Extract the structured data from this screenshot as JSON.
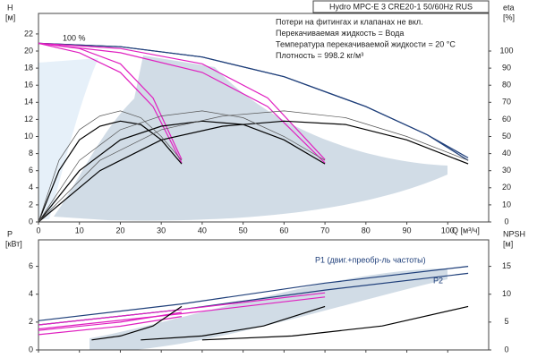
{
  "chart_data": [
    {
      "type": "line",
      "header": "Hydro MPC-E 3 CRE20-1 50/60Hz RUS",
      "notes": [
        "Потери на фитингах и клапанах не вкл.",
        "Перекачиваемая жидкость = Вода",
        "Температура перекачиваемой жидкости = 20 °C",
        "Плотность = 998.2 кг/м³"
      ],
      "annotation": "100 %",
      "ylabel": [
        "H",
        "[м]"
      ],
      "y2label": [
        "eta",
        "[%]"
      ],
      "xlabel": "Q [м³/ч]",
      "xlim": [
        0,
        110
      ],
      "xticks": [
        0,
        10,
        20,
        30,
        40,
        50,
        60,
        70,
        80,
        90,
        100
      ],
      "ylim": [
        0,
        24.4
      ],
      "yticks": [
        0,
        2,
        4,
        6,
        8,
        10,
        12,
        14,
        16,
        18,
        20,
        22
      ],
      "y2lim": [
        0,
        122
      ],
      "y2ticks": [
        0,
        10,
        20,
        30,
        40,
        50,
        60,
        70,
        80,
        90,
        100
      ],
      "series": [
        {
          "color": "#1f3f7a",
          "x": [
            0,
            20,
            40,
            60,
            80,
            95,
            105
          ],
          "values": [
            20.9,
            20.5,
            19.3,
            17,
            13.5,
            10.2,
            7.2
          ]
        },
        {
          "color": "#1f3f7a",
          "x": [
            0,
            20,
            40,
            60,
            80,
            95,
            105
          ],
          "values": [
            20.9,
            20.5,
            19.3,
            17,
            13.5,
            10.2,
            7.5
          ]
        },
        {
          "color": "#e020c0",
          "x": [
            0,
            10,
            20,
            28,
            35
          ],
          "values": [
            20.9,
            20.3,
            18.5,
            14.5,
            7.3
          ]
        },
        {
          "color": "#e020c0",
          "x": [
            0,
            10,
            20,
            28,
            35
          ],
          "values": [
            20.9,
            19.8,
            17.5,
            13.5,
            6.9
          ]
        },
        {
          "color": "#e020c0",
          "x": [
            0,
            20,
            40,
            56,
            70
          ],
          "values": [
            20.9,
            20.3,
            18.5,
            14.5,
            7.3
          ]
        },
        {
          "color": "#e020c0",
          "x": [
            0,
            20,
            40,
            56,
            70
          ],
          "values": [
            20.9,
            19.8,
            17.5,
            13.5,
            6.9
          ]
        },
        {
          "color": "#000000",
          "axis": "y2",
          "x": [
            0,
            5,
            10,
            15,
            20,
            25,
            30,
            35
          ],
          "values": [
            0,
            30,
            48,
            56,
            59,
            57,
            48,
            34
          ]
        },
        {
          "color": "#000000",
          "axis": "y2",
          "x": [
            0,
            10,
            20,
            30,
            40,
            50,
            60,
            70
          ],
          "values": [
            0,
            30,
            48,
            56,
            59,
            57,
            48,
            34
          ]
        },
        {
          "color": "#000000",
          "axis": "y2",
          "x": [
            0,
            15,
            30,
            45,
            60,
            75,
            90,
            105
          ],
          "values": [
            0,
            30,
            48,
            56,
            59,
            57,
            48,
            34
          ]
        },
        {
          "color": "#555555",
          "axis": "y2",
          "x": [
            0,
            5,
            10,
            15,
            20,
            25,
            30,
            35
          ],
          "values": [
            0,
            36,
            54,
            62,
            65,
            61,
            50,
            36
          ]
        },
        {
          "color": "#555555",
          "axis": "y2",
          "x": [
            0,
            10,
            20,
            30,
            40,
            50,
            60,
            70
          ],
          "values": [
            0,
            36,
            54,
            62,
            65,
            61,
            50,
            36
          ]
        },
        {
          "color": "#555555",
          "axis": "y2",
          "x": [
            0,
            15,
            30,
            45,
            60,
            75,
            90,
            105
          ],
          "values": [
            0,
            36,
            54,
            62,
            65,
            61,
            50,
            36
          ]
        }
      ]
    },
    {
      "type": "line",
      "ylabel": [
        "P",
        "[кВт]"
      ],
      "y2label": [
        "NPSH",
        "[м]"
      ],
      "labels": [
        "P1 (двиг.+преобр-ль частоты)",
        "P2"
      ],
      "xlim": [
        0,
        110
      ],
      "xticks": [
        0,
        10,
        20,
        30,
        40,
        50,
        60,
        70,
        80,
        90,
        100
      ],
      "ylim": [
        0,
        7.9
      ],
      "yticks": [
        0,
        2,
        4,
        6
      ],
      "y2lim": [
        0,
        19.75
      ],
      "y2ticks": [
        0,
        5,
        10,
        15
      ],
      "series": [
        {
          "color": "#1f3f7a",
          "x": [
            0,
            35,
            70,
            105
          ],
          "values": [
            2.1,
            3.3,
            4.8,
            6.0
          ]
        },
        {
          "color": "#1f3f7a",
          "x": [
            0,
            35,
            70,
            105
          ],
          "values": [
            1.8,
            2.9,
            4.3,
            5.5
          ]
        },
        {
          "color": "#e020c0",
          "x": [
            0,
            35,
            70
          ],
          "values": [
            1.8,
            2.9,
            4.1
          ]
        },
        {
          "color": "#e020c0",
          "x": [
            0,
            35,
            70
          ],
          "values": [
            1.5,
            2.6,
            3.8
          ]
        },
        {
          "color": "#e020c0",
          "x": [
            0,
            20,
            35
          ],
          "values": [
            1.4,
            2.0,
            2.7
          ]
        },
        {
          "color": "#e020c0",
          "x": [
            0,
            20,
            35
          ],
          "values": [
            1.1,
            1.7,
            2.4
          ]
        },
        {
          "color": "#000000",
          "axis": "y2",
          "x": [
            13,
            20,
            28,
            35
          ],
          "values": [
            1.8,
            2.5,
            4.3,
            7.8
          ]
        },
        {
          "color": "#000000",
          "axis": "y2",
          "x": [
            25,
            40,
            55,
            70
          ],
          "values": [
            1.8,
            2.5,
            4.3,
            7.8
          ]
        },
        {
          "color": "#000000",
          "axis": "y2",
          "x": [
            40,
            62,
            84,
            105
          ],
          "values": [
            1.8,
            2.5,
            4.3,
            7.8
          ]
        }
      ]
    }
  ]
}
